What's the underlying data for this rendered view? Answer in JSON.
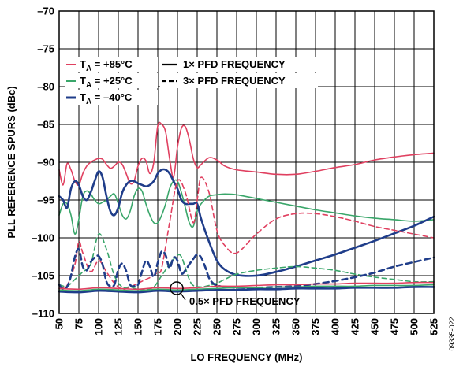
{
  "chart_data": {
    "type": "line",
    "title": "",
    "xlabel": "LO FREQUENCY (MHz)",
    "ylabel": "PLL REFERENCE SPURS (dBc)",
    "xlim": [
      50,
      525
    ],
    "ylim": [
      -110,
      -70
    ],
    "x_ticks": [
      50,
      75,
      100,
      125,
      150,
      175,
      200,
      225,
      250,
      275,
      300,
      325,
      350,
      375,
      400,
      425,
      450,
      475,
      500,
      525
    ],
    "y_ticks": [
      -70,
      -75,
      -80,
      -85,
      -90,
      -95,
      -100,
      -105,
      -110
    ],
    "x_tick_labels": [
      "50",
      "75",
      "100",
      "125",
      "150",
      "175",
      "200",
      "225",
      "250",
      "275",
      "300",
      "325",
      "350",
      "375",
      "400",
      "425",
      "450",
      "475",
      "500",
      "525"
    ],
    "y_tick_labels": [
      "–70",
      "–75",
      "–80",
      "–85",
      "–90",
      "–95",
      "–100",
      "–105",
      "–110"
    ],
    "grid": true,
    "legend": {
      "placement": "top-left",
      "temperatures": [
        {
          "prefix": "T",
          "sub": "A",
          "text": " = +85°C",
          "color": "#e04060"
        },
        {
          "prefix": "T",
          "sub": "A",
          "text": " = +25°C",
          "color": "#3aa66a"
        },
        {
          "prefix": "T",
          "sub": "A",
          "text": " = –40°C",
          "color": "#1f3d8a"
        }
      ],
      "styles": [
        {
          "text": "1× PFD FREQUENCY",
          "dash": "solid"
        },
        {
          "text": "3× PFD FREQUENCY",
          "dash": "dashed"
        }
      ]
    },
    "annotation": {
      "text": "0.5× PFD FREQUENCY",
      "x": 199,
      "y": -106.8
    },
    "figure_id": "09335-022",
    "series": [
      {
        "temp": "+85°C",
        "mode": "1x PFD",
        "color": "#e04060",
        "dash": "solid",
        "x": [
          50,
          55,
          60,
          65,
          70,
          75,
          80,
          85,
          90,
          95,
          100,
          105,
          110,
          115,
          120,
          125,
          130,
          135,
          140,
          145,
          150,
          155,
          160,
          165,
          170,
          175,
          180,
          185,
          190,
          195,
          200,
          205,
          210,
          215,
          220,
          225,
          230,
          240,
          250,
          260,
          275,
          300,
          325,
          350,
          375,
          400,
          425,
          450,
          475,
          500,
          525
        ],
        "y": [
          -91,
          -93,
          -90.2,
          -91,
          -92.5,
          -93,
          -91.5,
          -90.5,
          -90,
          -89.7,
          -89.5,
          -89.6,
          -90.3,
          -90.8,
          -90.5,
          -90,
          -90.3,
          -91.5,
          -92.8,
          -92.5,
          -90.5,
          -89.5,
          -89.8,
          -91.5,
          -90,
          -85.2,
          -85,
          -86,
          -89.5,
          -92,
          -88,
          -85.5,
          -85.3,
          -87,
          -89.5,
          -90.7,
          -90.3,
          -89.4,
          -89.7,
          -90.5,
          -91,
          -91.3,
          -91.6,
          -91.6,
          -91.2,
          -90.7,
          -90.3,
          -89.7,
          -89.3,
          -89,
          -88.8
        ]
      },
      {
        "temp": "+25°C",
        "mode": "1x PFD",
        "color": "#3aa66a",
        "dash": "solid",
        "x": [
          50,
          55,
          60,
          65,
          70,
          75,
          80,
          85,
          90,
          95,
          100,
          105,
          110,
          115,
          120,
          125,
          130,
          135,
          140,
          145,
          150,
          155,
          160,
          165,
          170,
          175,
          180,
          185,
          190,
          195,
          200,
          205,
          210,
          215,
          220,
          225,
          230,
          240,
          250,
          260,
          275,
          300,
          325,
          350,
          375,
          400,
          425,
          450,
          475,
          500,
          525
        ],
        "y": [
          -97,
          -95.5,
          -95.5,
          -97,
          -99.5,
          -97.5,
          -94.5,
          -93.8,
          -94.2,
          -95,
          -95.5,
          -95.3,
          -95,
          -94.5,
          -94.2,
          -95.5,
          -97,
          -97.5,
          -96.5,
          -94.5,
          -93.5,
          -93.8,
          -95.5,
          -97,
          -98,
          -98,
          -97,
          -95.5,
          -93.5,
          -92.5,
          -92.5,
          -94,
          -96,
          -98,
          -98.5,
          -96.5,
          -95.5,
          -94.5,
          -94.3,
          -94.2,
          -94.3,
          -94.8,
          -95.3,
          -95.8,
          -96.3,
          -96.7,
          -97.1,
          -97.4,
          -97.6,
          -97.8,
          -97.6
        ]
      },
      {
        "temp": "–40°C",
        "mode": "1x PFD",
        "color": "#1f3d8a",
        "dash": "solid",
        "x": [
          50,
          55,
          60,
          65,
          70,
          75,
          80,
          85,
          90,
          95,
          100,
          105,
          110,
          115,
          120,
          125,
          130,
          135,
          140,
          145,
          150,
          155,
          160,
          165,
          170,
          175,
          180,
          185,
          190,
          195,
          200,
          205,
          210,
          215,
          220,
          225,
          230,
          240,
          250,
          260,
          275,
          300,
          325,
          350,
          375,
          400,
          425,
          450,
          475,
          500,
          525
        ],
        "y": [
          -94.5,
          -95,
          -96,
          -93.5,
          -92.5,
          -93,
          -94.5,
          -95,
          -94,
          -92.5,
          -91.2,
          -92,
          -94.5,
          -96.5,
          -97,
          -96,
          -94,
          -93,
          -92.5,
          -92.5,
          -92.8,
          -93,
          -93.2,
          -93,
          -92.5,
          -91.5,
          -91,
          -91,
          -91.5,
          -92.5,
          -93.5,
          -95,
          -95.5,
          -95.5,
          -95.5,
          -95.5,
          -97.5,
          -100.5,
          -103,
          -104.2,
          -104.9,
          -105,
          -104.5,
          -103.8,
          -103,
          -102.2,
          -101.3,
          -100.4,
          -99.4,
          -98.4,
          -97.2
        ]
      },
      {
        "temp": "+85°C",
        "mode": "3x PFD",
        "color": "#e04060",
        "dash": "dashed",
        "x": [
          50,
          60,
          70,
          75,
          80,
          90,
          100,
          110,
          120,
          130,
          140,
          150,
          160,
          170,
          175,
          180,
          190,
          200,
          210,
          220,
          225,
          230,
          240,
          250,
          260,
          275,
          300,
          325,
          350,
          375,
          400,
          425,
          450,
          475,
          500,
          525
        ],
        "y": [
          -106.5,
          -106.3,
          -103.5,
          -100.5,
          -102,
          -104.5,
          -103,
          -104.5,
          -106,
          -106.8,
          -106.5,
          -106,
          -105.5,
          -105,
          -104.5,
          -104,
          -98,
          -92.5,
          -94,
          -98,
          -95,
          -92,
          -94,
          -99,
          -101,
          -102,
          -99.5,
          -97.5,
          -96.8,
          -96.8,
          -97.2,
          -97.8,
          -98.5,
          -99,
          -99.5,
          -100
        ]
      },
      {
        "temp": "+25°C",
        "mode": "3x PFD",
        "color": "#3aa66a",
        "dash": "dashed",
        "x": [
          50,
          60,
          70,
          80,
          90,
          100,
          110,
          120,
          130,
          140,
          150,
          160,
          170,
          180,
          190,
          200,
          205,
          210,
          215,
          220,
          230,
          240,
          250,
          260,
          275,
          300,
          325,
          350,
          375,
          400,
          425,
          450,
          475,
          500,
          525
        ],
        "y": [
          -106.2,
          -106.4,
          -105.5,
          -104.5,
          -103.5,
          -99.5,
          -101.5,
          -105,
          -106.5,
          -106.5,
          -106.8,
          -106.8,
          -106.5,
          -105,
          -103.5,
          -102.3,
          -102.5,
          -104,
          -105.5,
          -106.3,
          -106.5,
          -106.3,
          -106,
          -105.5,
          -104.8,
          -104.3,
          -104,
          -103.8,
          -104,
          -104.3,
          -104.8,
          -105.2,
          -105.5,
          -105.8,
          -105.8
        ]
      },
      {
        "temp": "–40°C",
        "mode": "3x PFD",
        "color": "#1f3d8a",
        "dash": "dashed",
        "x": [
          50,
          55,
          60,
          65,
          70,
          75,
          80,
          85,
          90,
          95,
          100,
          105,
          110,
          115,
          120,
          125,
          130,
          135,
          140,
          145,
          150,
          155,
          160,
          165,
          170,
          175,
          180,
          185,
          190,
          195,
          200,
          205,
          210,
          215,
          220,
          225,
          230,
          235,
          240,
          245,
          250,
          260,
          275,
          300,
          325,
          350,
          375,
          400,
          425,
          450,
          475,
          500,
          525
        ],
        "y": [
          -106.2,
          -106.8,
          -106.5,
          -105,
          -102.5,
          -101.5,
          -103.8,
          -104.3,
          -103.2,
          -102.6,
          -102.4,
          -103.5,
          -105.8,
          -106.4,
          -106.2,
          -104.2,
          -103.4,
          -104.4,
          -106.2,
          -106.4,
          -106.2,
          -104.5,
          -103,
          -103.8,
          -105.2,
          -103.3,
          -101.8,
          -102.3,
          -104,
          -102.6,
          -103,
          -104.7,
          -104.3,
          -103.5,
          -102.8,
          -102.2,
          -102.6,
          -103.8,
          -105.3,
          -106,
          -106.3,
          -106.5,
          -106.6,
          -106.6,
          -106.5,
          -106.4,
          -106.1,
          -105.7,
          -105.2,
          -104.6,
          -103.8,
          -103.2,
          -102.6
        ]
      },
      {
        "temp": "+85°C",
        "mode": "0.5x PFD",
        "color": "#e04060",
        "dash": "solid",
        "x": [
          50,
          75,
          100,
          125,
          150,
          175,
          200,
          225,
          250,
          275,
          300,
          325,
          350,
          375,
          400,
          425,
          450,
          475,
          500,
          525
        ],
        "y": [
          -106.7,
          -106.8,
          -106.6,
          -106.7,
          -106.8,
          -106.6,
          -106.7,
          -106.6,
          -106.4,
          -106.4,
          -106.3,
          -106.2,
          -106.2,
          -106.1,
          -106.1,
          -106.0,
          -106.0,
          -106.0,
          -105.9,
          -105.9
        ]
      },
      {
        "temp": "+25°C",
        "mode": "0.5x PFD",
        "color": "#3aa66a",
        "dash": "solid",
        "x": [
          50,
          75,
          100,
          125,
          150,
          175,
          200,
          225,
          250,
          275,
          300,
          325,
          350,
          375,
          400,
          425,
          450,
          475,
          500,
          525
        ],
        "y": [
          -106.9,
          -107.0,
          -106.8,
          -106.9,
          -107.0,
          -106.8,
          -106.9,
          -106.8,
          -106.7,
          -106.6,
          -106.6,
          -106.5,
          -106.5,
          -106.4,
          -106.4,
          -106.4,
          -106.3,
          -106.3,
          -106.3,
          -106.2
        ]
      },
      {
        "temp": "–40°C",
        "mode": "0.5x PFD",
        "color": "#1f3d8a",
        "dash": "solid",
        "x": [
          50,
          75,
          100,
          125,
          150,
          175,
          200,
          225,
          250,
          275,
          300,
          325,
          350,
          375,
          400,
          425,
          450,
          475,
          500,
          525
        ],
        "y": [
          -107.1,
          -107.2,
          -107.0,
          -107.1,
          -107.2,
          -107.0,
          -107.1,
          -107.0,
          -106.9,
          -106.9,
          -106.8,
          -106.8,
          -106.7,
          -106.7,
          -106.7,
          -106.6,
          -106.6,
          -106.6,
          -106.5,
          -106.5
        ]
      }
    ]
  }
}
